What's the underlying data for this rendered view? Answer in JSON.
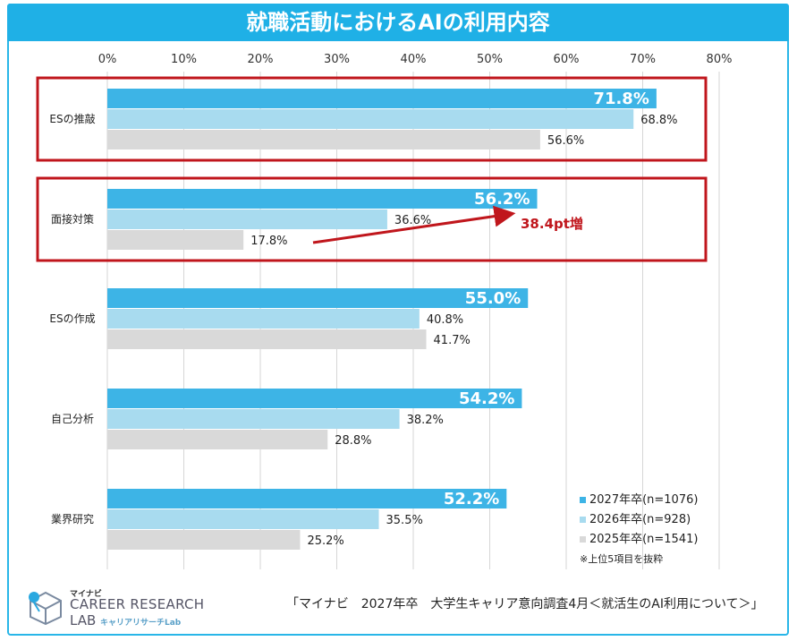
{
  "title": "就職活動におけるAIの利用内容",
  "chart_data": {
    "type": "bar",
    "orientation": "horizontal",
    "categories": [
      "ESの推敲",
      "面接対策",
      "ESの作成",
      "自己分析",
      "業界研究"
    ],
    "series": [
      {
        "name": "2027年卒(n=1076)",
        "color": "#3db4e6",
        "values": [
          71.8,
          56.2,
          55.0,
          54.2,
          52.2
        ],
        "labels": [
          "71.8%",
          "56.2%",
          "55.0%",
          "54.2%",
          "52.2%"
        ]
      },
      {
        "name": "2026年卒(n=928)",
        "color": "#a8dbef",
        "values": [
          68.8,
          36.6,
          40.8,
          38.2,
          35.5
        ],
        "labels": [
          "68.8%",
          "36.6%",
          "40.8%",
          "38.2%",
          "35.5%"
        ]
      },
      {
        "name": "2025年卒(n=1541)",
        "color": "#d9d9d9",
        "values": [
          56.6,
          17.8,
          41.7,
          28.8,
          25.2
        ],
        "labels": [
          "56.6%",
          "17.8%",
          "41.7%",
          "28.8%",
          "25.2%"
        ]
      }
    ],
    "xlim": [
      0,
      80
    ],
    "xticks": [
      "0%",
      "10%",
      "20%",
      "30%",
      "40%",
      "50%",
      "60%",
      "70%",
      "80%"
    ],
    "grid": true,
    "highlighted_categories": [
      "ESの推敲",
      "面接対策"
    ],
    "highlight_color": "#c0161c",
    "annotation": {
      "text": "38.4pt増",
      "color": "#c0161c"
    },
    "legend_position": "bottom-right"
  },
  "legend_note": "※上位5項目を抜粋",
  "logo": {
    "brand": "マイナビ",
    "line1": "CAREER RESEARCH",
    "line2": "LAB",
    "sub": "キャリアリサーチLab"
  },
  "source": "「マイナビ　2027年卒　大学生キャリア意向調査4月＜就活生のAI利用について＞」"
}
